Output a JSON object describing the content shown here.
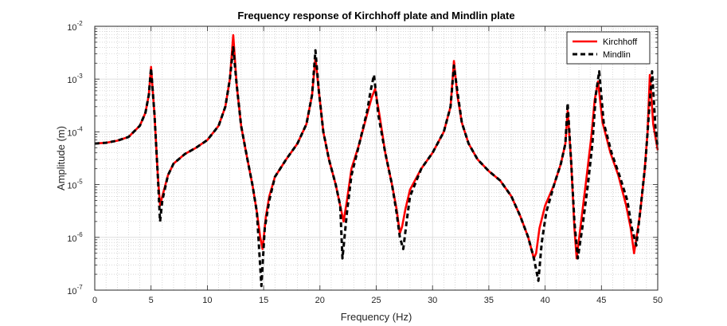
{
  "chart_data": {
    "type": "line",
    "title": "Frequency response of Kirchhoff plate and Mindlin plate",
    "xlabel": "Frequency (Hz)",
    "ylabel": "Amplitude (m)",
    "xlim": [
      0,
      50
    ],
    "ylim": [
      1e-07,
      0.01
    ],
    "yscale": "log",
    "grid": true,
    "minor_grid": true,
    "legend_position": "top-right",
    "x_ticks": [
      "0",
      "5",
      "10",
      "15",
      "20",
      "25",
      "30",
      "35",
      "40",
      "45",
      "50"
    ],
    "y_ticks": [
      {
        "base": "10",
        "exp": "-7"
      },
      {
        "base": "10",
        "exp": "-6"
      },
      {
        "base": "10",
        "exp": "-5"
      },
      {
        "base": "10",
        "exp": "-4"
      },
      {
        "base": "10",
        "exp": "-3"
      },
      {
        "base": "10",
        "exp": "-2"
      }
    ],
    "series": [
      {
        "name": "Kirchhoff",
        "color": "#ff0000",
        "style": "solid",
        "x": [
          0,
          1,
          2,
          3,
          4,
          4.5,
          4.8,
          5.0,
          5.3,
          5.6,
          5.8,
          6.0,
          6.5,
          7,
          8,
          9,
          10,
          11,
          11.6,
          12.0,
          12.3,
          12.6,
          13.0,
          13.5,
          14.0,
          14.4,
          14.7,
          14.9,
          15.2,
          15.5,
          16,
          17,
          18,
          18.8,
          19.3,
          19.6,
          19.9,
          20.3,
          20.8,
          21.4,
          21.8,
          22.1,
          22.4,
          22.8,
          23.5,
          24.2,
          24.6,
          24.9,
          25.3,
          25.8,
          26.4,
          26.8,
          27.1,
          27.3,
          27.6,
          28,
          29,
          30,
          31,
          31.6,
          31.9,
          32.2,
          32.6,
          33.2,
          34,
          35,
          36,
          37,
          37.8,
          38.5,
          39.0,
          39.2,
          39.5,
          40,
          40.8,
          41.4,
          41.8,
          42.0,
          42.3,
          42.6,
          42.8,
          43.2,
          43.7,
          44.1,
          44.4,
          44.7,
          45.1,
          45.8,
          46.5,
          47.2,
          47.6,
          47.9,
          48.4,
          48.8,
          49.1,
          49.3,
          49.6,
          50
        ],
        "y": [
          6e-05,
          6.2e-05,
          6.8e-05,
          8e-05,
          0.00013,
          0.00023,
          0.0005,
          0.0017,
          0.00022,
          1.5e-05,
          4e-06,
          6e-06,
          1.5e-05,
          2.5e-05,
          3.8e-05,
          5e-05,
          7e-05,
          0.00013,
          0.0003,
          0.001,
          0.0068,
          0.0008,
          0.00013,
          3.5e-05,
          1e-05,
          3e-06,
          1e-06,
          6e-07,
          2.5e-06,
          6e-06,
          1.4e-05,
          3e-05,
          6e-05,
          0.00014,
          0.0005,
          0.0025,
          0.0006,
          0.0001,
          3e-05,
          1e-05,
          4e-06,
          2e-06,
          5e-06,
          2e-05,
          6e-05,
          0.00022,
          0.00045,
          0.00065,
          0.0002,
          4e-05,
          1e-05,
          3.5e-06,
          1.2e-06,
          1.6e-06,
          3.5e-06,
          8e-06,
          2e-05,
          4e-05,
          0.0001,
          0.0003,
          0.0022,
          0.0005,
          0.00015,
          6e-05,
          3e-05,
          1.8e-05,
          1.2e-05,
          6e-06,
          2.5e-06,
          1e-06,
          4e-07,
          5e-07,
          1.5e-06,
          4e-06,
          1e-05,
          2.5e-05,
          6e-05,
          0.00025,
          3e-05,
          1.5e-06,
          4e-07,
          2e-06,
          1.5e-05,
          8e-05,
          0.0004,
          0.0009,
          0.00015,
          4e-05,
          1.5e-05,
          4e-06,
          1.5e-06,
          5e-07,
          2.5e-06,
          1.5e-05,
          0.0001,
          0.0012,
          0.00014,
          4.5e-05
        ]
      },
      {
        "name": "Mindlin",
        "color": "#000000",
        "style": "dashed",
        "x": [
          0,
          1,
          2,
          3,
          4,
          4.5,
          4.8,
          5.0,
          5.3,
          5.6,
          5.8,
          6.0,
          6.5,
          7,
          8,
          9,
          10,
          11,
          11.6,
          12.0,
          12.3,
          12.6,
          13.0,
          13.5,
          14.0,
          14.4,
          14.6,
          14.8,
          15.1,
          15.5,
          16,
          17,
          18,
          18.8,
          19.3,
          19.6,
          19.9,
          20.3,
          20.8,
          21.4,
          21.8,
          22.0,
          22.4,
          22.8,
          23.5,
          24.2,
          24.5,
          24.8,
          25.2,
          25.8,
          26.4,
          26.8,
          27.1,
          27.4,
          27.7,
          28,
          29,
          30,
          31,
          31.6,
          31.9,
          32.2,
          32.6,
          33.2,
          34,
          35,
          36,
          37,
          37.8,
          38.5,
          39.0,
          39.4,
          39.7,
          40.1,
          40.8,
          41.4,
          41.8,
          42.0,
          42.3,
          42.6,
          42.9,
          43.3,
          43.8,
          44.2,
          44.5,
          44.8,
          45.2,
          45.9,
          46.6,
          47.3,
          47.7,
          48.1,
          48.5,
          48.9,
          49.2,
          49.5,
          49.8,
          50
        ],
        "y": [
          6e-05,
          6.2e-05,
          6.8e-05,
          8e-05,
          0.00013,
          0.00023,
          0.0005,
          0.0016,
          0.00022,
          1.5e-05,
          2e-06,
          5e-06,
          1.5e-05,
          2.5e-05,
          3.8e-05,
          5e-05,
          7e-05,
          0.00013,
          0.0003,
          0.001,
          0.004,
          0.0008,
          0.00013,
          3.5e-05,
          1e-05,
          3e-06,
          6e-07,
          1.2e-07,
          1.5e-06,
          5e-06,
          1.4e-05,
          3e-05,
          6e-05,
          0.00014,
          0.0005,
          0.0035,
          0.0006,
          0.0001,
          3e-05,
          1e-05,
          4e-06,
          4e-07,
          3e-06,
          1.5e-05,
          6e-05,
          0.00025,
          0.0006,
          0.0012,
          0.0002,
          4e-05,
          1e-05,
          3e-06,
          1e-06,
          6e-07,
          2e-06,
          6e-06,
          2e-05,
          4e-05,
          0.0001,
          0.0003,
          0.0018,
          0.0006,
          0.00015,
          6e-05,
          3e-05,
          1.8e-05,
          1.2e-05,
          6e-06,
          2.5e-06,
          1e-06,
          4e-07,
          1.5e-07,
          8e-07,
          3e-06,
          1e-05,
          2.5e-05,
          6e-05,
          0.00035,
          3e-05,
          2e-06,
          4e-07,
          1.5e-06,
          1e-05,
          6e-05,
          0.0005,
          0.0014,
          0.00015,
          4e-05,
          1.5e-05,
          5e-06,
          1.5e-06,
          7e-07,
          4e-06,
          2.5e-05,
          0.0002,
          0.0014,
          0.00012,
          5e-05
        ]
      }
    ]
  }
}
